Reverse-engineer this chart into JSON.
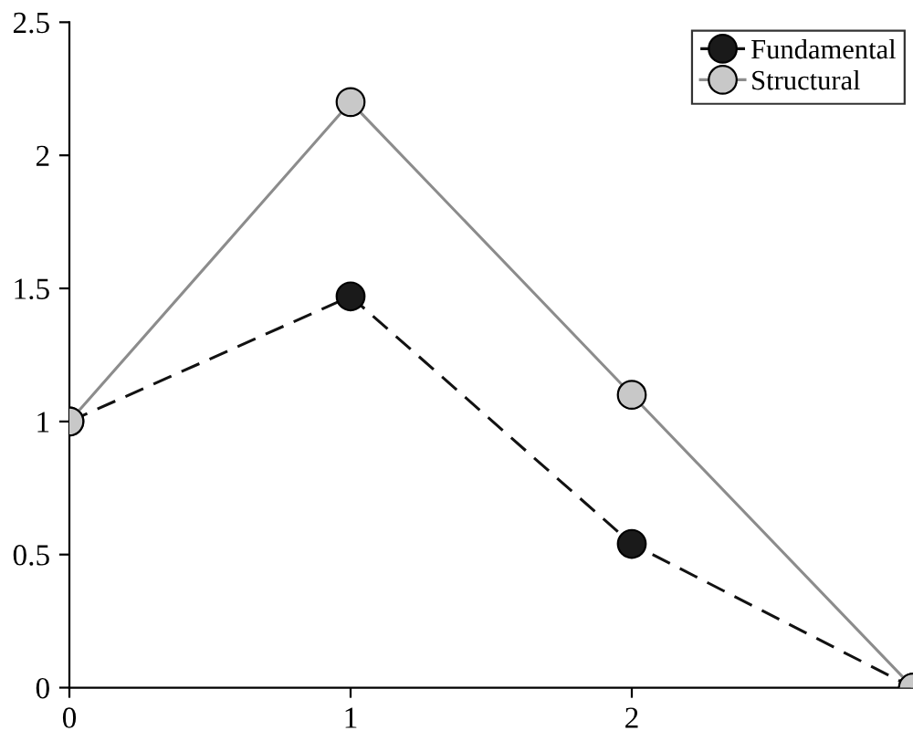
{
  "chart_data": {
    "type": "line",
    "x": [
      0,
      1,
      2,
      3
    ],
    "series": [
      {
        "name": "Fundamental",
        "color": "#1a1a1a",
        "line_style": "dashed",
        "values": [
          1,
          1.47,
          0.54,
          0
        ]
      },
      {
        "name": "Structural",
        "color": "#c8c8c8",
        "line_style": "solid",
        "values": [
          1,
          2.2,
          1.1,
          0
        ]
      }
    ],
    "xlim": [
      0,
      3
    ],
    "xticks": [
      0,
      1,
      2
    ],
    "ylim": [
      0,
      2.5
    ],
    "yticks": [
      0,
      0.5,
      1,
      1.5,
      2,
      2.5
    ],
    "marker": "circle",
    "grid": false,
    "legend": "top right"
  }
}
